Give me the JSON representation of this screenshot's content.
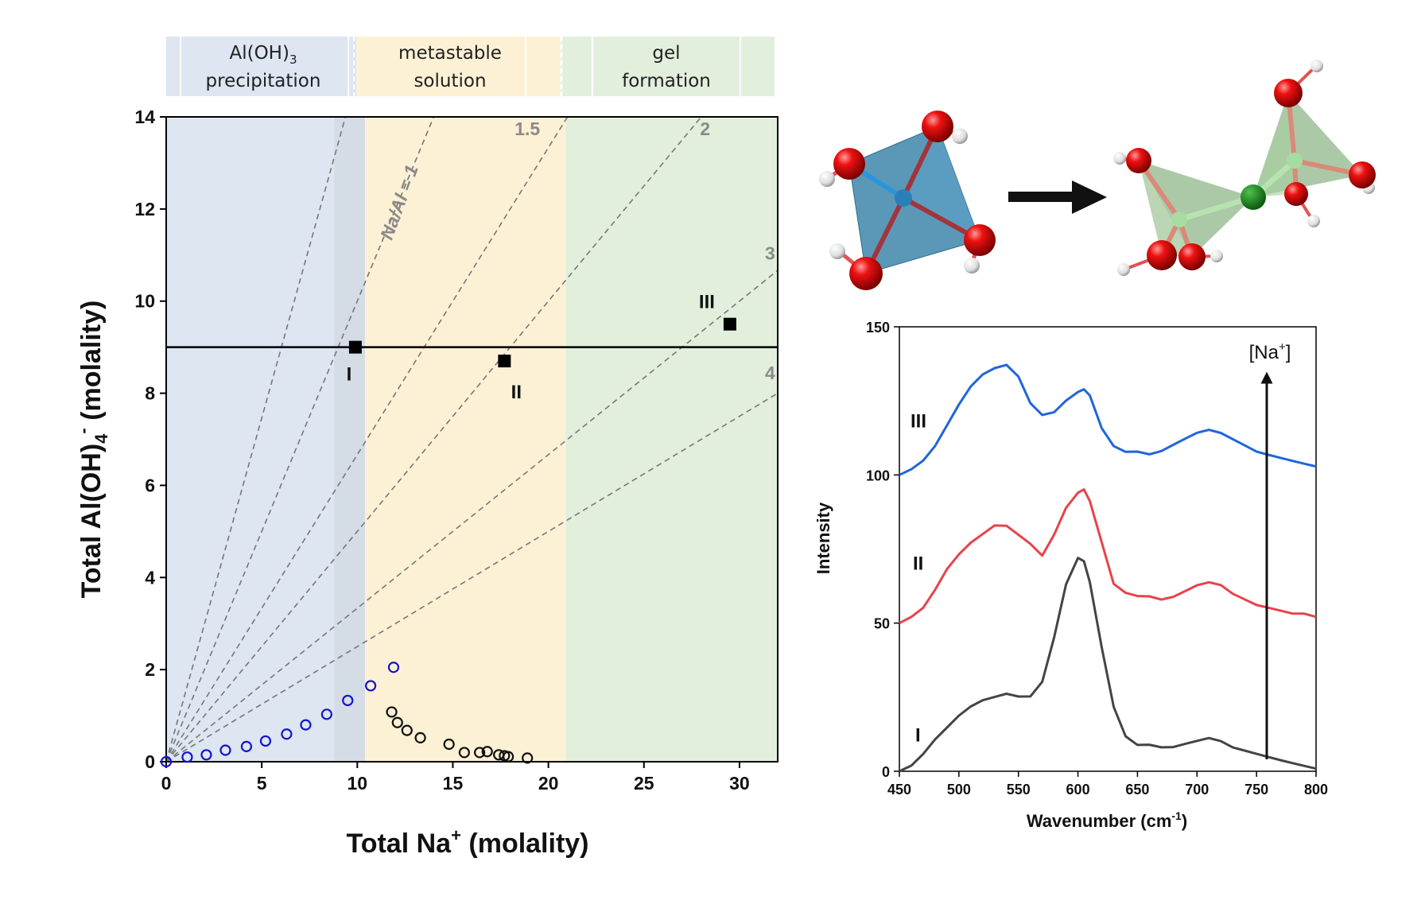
{
  "regimes": [
    {
      "line1": "Al(OH)",
      "sub": "3",
      "line2": "precipitation",
      "color": "#dde6f1"
    },
    {
      "line1": "metastable",
      "line2": "solution",
      "color": "#fdf1d5"
    },
    {
      "line1": "gel",
      "line2": "formation",
      "color": "#e3efdd"
    }
  ],
  "chart_data": [
    {
      "type": "scatter",
      "title": "",
      "xlabel": "Total Na",
      "xlabel_sup": "+",
      "xlabel_tail": " (molality)",
      "ylabel": "Total Al(OH)",
      "ylabel_sub": "4",
      "ylabel_sup": "-",
      "ylabel_tail": " (molality)",
      "xlim": [
        0,
        32
      ],
      "ylim": [
        0,
        14
      ],
      "xticks": [
        0,
        5,
        10,
        15,
        20,
        25,
        30
      ],
      "yticks": [
        0,
        2,
        4,
        6,
        8,
        10,
        12,
        14
      ],
      "regions": [
        {
          "name": "Al(OH)3 precipitation",
          "x_range": [
            0,
            10.4
          ],
          "color": "#dde6f1"
        },
        {
          "name": "metastable solution",
          "x_range": [
            10.4,
            20.9
          ],
          "color": "#fdf1d5"
        },
        {
          "name": "gel formation",
          "x_range": [
            20.9,
            32
          ],
          "color": "#e3efdd"
        }
      ],
      "ratio_lines": [
        {
          "ratio": 0.67,
          "label": ""
        },
        {
          "ratio": 1,
          "label": "Na/Al = 1"
        },
        {
          "ratio": 1.5,
          "label": "1.5"
        },
        {
          "ratio": 2,
          "label": "2"
        },
        {
          "ratio": 3,
          "label": "3"
        },
        {
          "ratio": 4,
          "label": "4"
        }
      ],
      "hline": 9.0,
      "samples": [
        {
          "name": "I",
          "x": 9.9,
          "y": 9.0
        },
        {
          "name": "II",
          "x": 17.7,
          "y": 8.7
        },
        {
          "name": "III",
          "x": 29.5,
          "y": 9.5
        }
      ],
      "series": [
        {
          "name": "soluble (blue)",
          "color": "#1515cc",
          "points": [
            [
              0,
              0
            ],
            [
              1.1,
              0.1
            ],
            [
              2.1,
              0.15
            ],
            [
              3.1,
              0.25
            ],
            [
              4.2,
              0.33
            ],
            [
              5.2,
              0.45
            ],
            [
              6.3,
              0.6
            ],
            [
              7.3,
              0.8
            ],
            [
              8.4,
              1.03
            ],
            [
              9.5,
              1.33
            ],
            [
              10.7,
              1.65
            ],
            [
              11.9,
              2.05
            ]
          ]
        },
        {
          "name": "precipitated (black)",
          "color": "#111111",
          "points": [
            [
              11.8,
              1.08
            ],
            [
              12.1,
              0.85
            ],
            [
              12.6,
              0.68
            ],
            [
              13.3,
              0.52
            ],
            [
              14.8,
              0.38
            ],
            [
              15.6,
              0.2
            ],
            [
              16.4,
              0.2
            ],
            [
              16.8,
              0.22
            ],
            [
              17.4,
              0.15
            ],
            [
              17.7,
              0.13
            ],
            [
              17.9,
              0.11
            ],
            [
              18.9,
              0.08
            ]
          ]
        }
      ]
    },
    {
      "type": "line",
      "title": "",
      "xlabel": "Wavenumber (cm",
      "xlabel_sup": "-1",
      "xlabel_tail": ")",
      "ylabel": "Intensity",
      "xlim": [
        450,
        800
      ],
      "ylim": [
        0,
        150
      ],
      "xticks": [
        450,
        500,
        550,
        600,
        650,
        700,
        750,
        800
      ],
      "yticks": [
        0,
        50,
        100,
        150
      ],
      "arrow_label": "[Na",
      "arrow_label_sup": "+",
      "arrow_label_tail": "]",
      "x": [
        450,
        460,
        470,
        480,
        490,
        500,
        510,
        520,
        530,
        540,
        550,
        560,
        570,
        580,
        590,
        600,
        605,
        610,
        620,
        630,
        640,
        650,
        660,
        670,
        680,
        690,
        700,
        710,
        720,
        730,
        740,
        750,
        760,
        770,
        780,
        790,
        800
      ],
      "series": [
        {
          "name": "I",
          "color": "#444444",
          "values": [
            0,
            2,
            6,
            11,
            15,
            19,
            22,
            24,
            25,
            26,
            25,
            25,
            30,
            45,
            63,
            72,
            71,
            64,
            42,
            22,
            12,
            9,
            9,
            8,
            8,
            9,
            10,
            11,
            10,
            8,
            7,
            6,
            5,
            4,
            3,
            2,
            1
          ]
        },
        {
          "name": "II",
          "color": "#e8424b",
          "values": [
            50,
            52,
            55,
            61,
            68,
            73,
            77,
            80,
            83,
            83,
            80,
            77,
            73,
            80,
            89,
            94,
            95,
            91,
            77,
            63,
            60,
            59,
            59,
            58,
            59,
            61,
            63,
            64,
            63,
            60,
            58,
            56,
            55,
            54,
            53,
            53,
            52
          ]
        },
        {
          "name": "III",
          "color": "#1f66d9",
          "values": [
            100,
            102,
            105,
            110,
            117,
            124,
            130,
            134,
            136,
            137,
            133,
            124,
            120,
            121,
            125,
            128,
            129,
            127,
            116,
            110,
            108,
            108,
            107,
            108,
            110,
            112,
            114,
            115,
            114,
            112,
            110,
            108,
            107,
            106,
            105,
            104,
            103
          ]
        }
      ]
    }
  ]
}
